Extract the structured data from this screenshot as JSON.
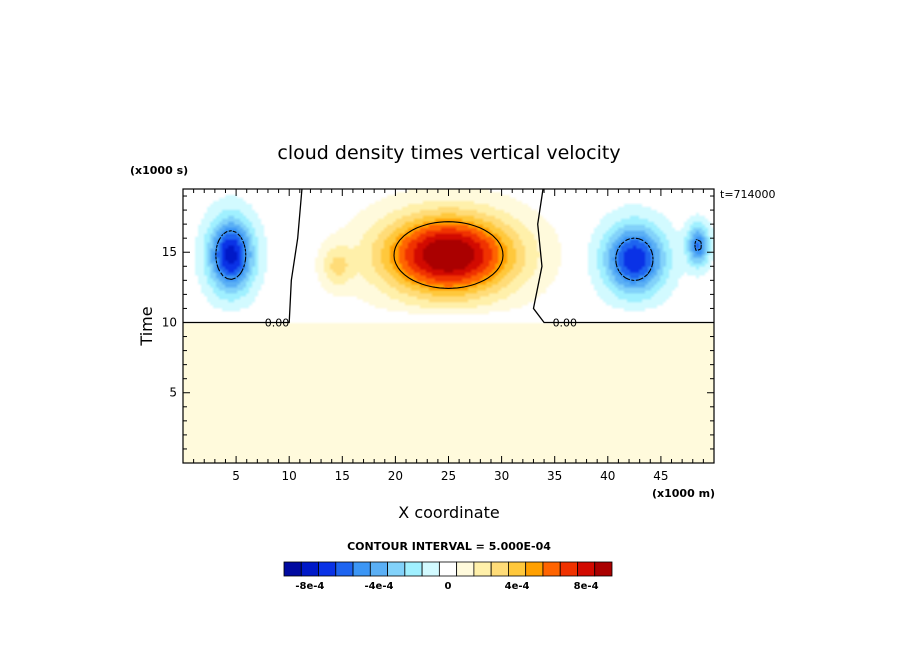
{
  "chart_data": {
    "type": "heatmap",
    "title": "cloud density times vertical velocity",
    "xlabel": "X coordinate",
    "ylabel": "Time",
    "x_unit_label": "(x1000 m)",
    "y_unit_label": "(x1000 s)",
    "time_annotation": "t=714000",
    "xlim": [
      0,
      50
    ],
    "ylim": [
      0,
      19.5
    ],
    "x_ticks": [
      5,
      10,
      15,
      20,
      25,
      30,
      35,
      40,
      45
    ],
    "y_ticks": [
      5,
      10,
      15
    ],
    "contour_zero_label": "0.00",
    "contour_interval_text": "CONTOUR INTERVAL = 5.000E-04",
    "field_onset_time": 10,
    "features": [
      {
        "kind": "updraft",
        "x_center": 25,
        "y_center": 14.8,
        "x_half_width": 7.8,
        "y_half_width": 3.6,
        "peak": 0.001
      },
      {
        "kind": "updraft",
        "x_center": 14.5,
        "y_center": 14.0,
        "x_half_width": 1.8,
        "y_half_width": 1.8,
        "peak": 0.00025
      },
      {
        "kind": "downdraft",
        "x_center": 4.5,
        "y_center": 14.8,
        "x_half_width": 2.6,
        "y_half_width": 3.2,
        "peak": -0.0008
      },
      {
        "kind": "downdraft",
        "x_center": 42.5,
        "y_center": 14.5,
        "x_half_width": 3.5,
        "y_half_width": 3.0,
        "peak": -0.00075
      },
      {
        "kind": "downdraft",
        "x_center": 48.5,
        "y_center": 15.5,
        "x_half_width": 1.3,
        "y_half_width": 1.8,
        "peak": -0.00055
      }
    ],
    "colorbar": {
      "levels": [
        -0.0009,
        -0.0008,
        -0.0007,
        -0.0006,
        -0.0005,
        -0.0004,
        -0.0003,
        -0.0002,
        -0.0001,
        0,
        0.0001,
        0.0002,
        0.0003,
        0.0004,
        0.0005,
        0.0006,
        0.0007,
        0.0008,
        0.0009
      ],
      "colors": [
        "#000aa0",
        "#0019c8",
        "#0a32e6",
        "#1e64f0",
        "#3c96f5",
        "#5aaff5",
        "#82d2fa",
        "#a0f0ff",
        "#d2faff",
        "#ffffff",
        "#fffadc",
        "#fff0aa",
        "#ffdc78",
        "#ffc83c",
        "#ffa000",
        "#ff6400",
        "#f03200",
        "#d20a00",
        "#aa0000"
      ],
      "tick_labels": [
        "-8e-4",
        "-4e-4",
        "0",
        "4e-4",
        "8e-4"
      ],
      "tick_values": [
        -0.0008,
        -0.0004,
        0,
        0.0004,
        0.0008
      ]
    }
  }
}
